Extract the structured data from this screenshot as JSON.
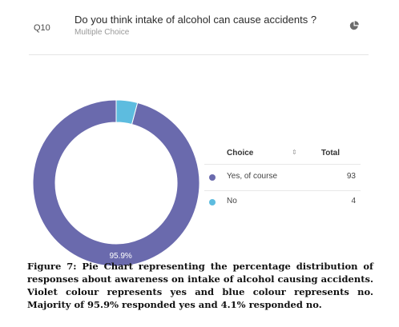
{
  "question": {
    "id": "Q10",
    "title": "Do you think intake of alcohol can cause accidents ?",
    "type": "Multiple Choice",
    "chart_icon": "pie-chart-icon"
  },
  "table": {
    "headers": {
      "choice": "Choice",
      "total": "Total"
    },
    "sort_icon": "sort-icon",
    "rows": [
      {
        "label": "Yes, of course",
        "value": "93",
        "color": "#6a6aad"
      },
      {
        "label": "No",
        "value": "4",
        "color": "#5dbcdf"
      }
    ]
  },
  "chart_data": {
    "type": "pie",
    "style": "donut",
    "categories": [
      "Yes, of course",
      "No"
    ],
    "values": [
      93,
      4
    ],
    "colors": [
      "#6a6aad",
      "#5dbcdf"
    ],
    "data_labels": [
      "95.9%",
      ""
    ]
  },
  "caption": {
    "lines": [
      "Figure 7: Pie Chart representing the percentage distribution of",
      "responses about awareness on intake of alcohol causing accidents.",
      "Violet colour represents yes and blue colour represents no.",
      "Majority of 95.9% responded yes and 4.1% responded no."
    ]
  }
}
